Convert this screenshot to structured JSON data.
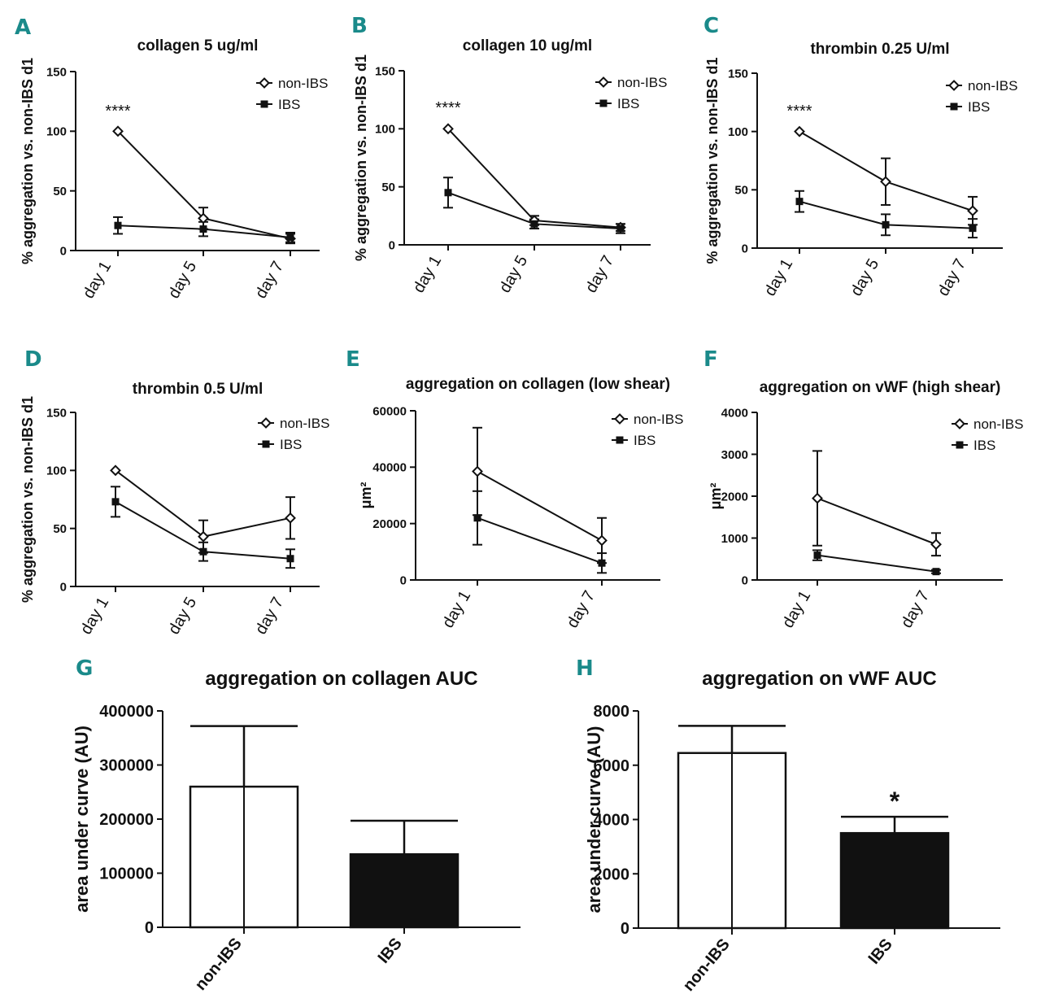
{
  "colors": {
    "panel_letter": "#1a8a8a",
    "ink": "#111111",
    "non_ibs_fill": "#ffffff",
    "ibs_fill": "#111111"
  },
  "chart_data": [
    {
      "id": "A",
      "type": "line",
      "title": "collagen 5 ug/ml",
      "xlabel": "",
      "ylabel": "% aggregation vs. non-IBS d1",
      "categories": [
        "day 1",
        "day 5",
        "day 7"
      ],
      "ylim": [
        0,
        150
      ],
      "yticks": [
        "0",
        "50",
        "100",
        "150"
      ],
      "legend": "top-right",
      "annotation": "****",
      "series": [
        {
          "name": "non-IBS",
          "marker": "diamond-open",
          "values": [
            100,
            27,
            10
          ],
          "errors": [
            0,
            9,
            4
          ]
        },
        {
          "name": "IBS",
          "marker": "square-filled",
          "values": [
            21,
            18,
            11
          ],
          "errors": [
            7,
            6,
            4
          ]
        }
      ]
    },
    {
      "id": "B",
      "type": "line",
      "title": "collagen 10 ug/ml",
      "xlabel": "",
      "ylabel": "% aggregation vs. non-IBS d1",
      "categories": [
        "day 1",
        "day 5",
        "day 7"
      ],
      "ylim": [
        0,
        150
      ],
      "yticks": [
        "0",
        "50",
        "100",
        "150"
      ],
      "legend": "top-right",
      "annotation": "****",
      "series": [
        {
          "name": "non-IBS",
          "marker": "diamond-open",
          "values": [
            100,
            21,
            15
          ],
          "errors": [
            0,
            4,
            3
          ]
        },
        {
          "name": "IBS",
          "marker": "square-filled",
          "values": [
            45,
            18,
            14
          ],
          "errors": [
            13,
            4,
            4
          ]
        }
      ]
    },
    {
      "id": "C",
      "type": "line",
      "title": "thrombin 0.25 U/ml",
      "xlabel": "",
      "ylabel": "% aggregation vs. non-IBS d1",
      "categories": [
        "day 1",
        "day 5",
        "day 7"
      ],
      "ylim": [
        0,
        150
      ],
      "yticks": [
        "0",
        "50",
        "100",
        "150"
      ],
      "legend": "top-right",
      "annotation": "****",
      "series": [
        {
          "name": "non-IBS",
          "marker": "diamond-open",
          "values": [
            100,
            57,
            32
          ],
          "errors": [
            0,
            20,
            12
          ]
        },
        {
          "name": "IBS",
          "marker": "square-filled",
          "values": [
            40,
            20,
            17
          ],
          "errors": [
            9,
            9,
            8
          ]
        }
      ]
    },
    {
      "id": "D",
      "type": "line",
      "title": "thrombin 0.5 U/ml",
      "xlabel": "",
      "ylabel": "% aggregation vs. non-IBS d1",
      "categories": [
        "day 1",
        "day 5",
        "day 7"
      ],
      "ylim": [
        0,
        150
      ],
      "yticks": [
        "0",
        "50",
        "100",
        "150"
      ],
      "legend": "top-right",
      "series": [
        {
          "name": "non-IBS",
          "marker": "diamond-open",
          "values": [
            100,
            43,
            59
          ],
          "errors": [
            0,
            14,
            18
          ]
        },
        {
          "name": "IBS",
          "marker": "square-filled",
          "values": [
            73,
            30,
            24
          ],
          "errors": [
            13,
            8,
            8
          ]
        }
      ]
    },
    {
      "id": "E",
      "type": "line",
      "title": "aggregation on collagen (low shear)",
      "xlabel": "",
      "ylabel": "μm²",
      "categories": [
        "day 1",
        "day 7"
      ],
      "ylim": [
        0,
        60000
      ],
      "yticks": [
        "0",
        "20000",
        "40000",
        "60000"
      ],
      "legend": "top-right",
      "series": [
        {
          "name": "non-IBS",
          "marker": "diamond-open",
          "values": [
            38500,
            14000
          ],
          "errors": [
            15500,
            8000
          ]
        },
        {
          "name": "IBS",
          "marker": "square-filled",
          "values": [
            22000,
            6000
          ],
          "errors": [
            9500,
            3500
          ]
        }
      ]
    },
    {
      "id": "F",
      "type": "line",
      "title": "aggregation on vWF (high shear)",
      "xlabel": "",
      "ylabel": "μm²",
      "categories": [
        "day 1",
        "day 7"
      ],
      "ylim": [
        0,
        4000
      ],
      "yticks": [
        "0",
        "1000",
        "2000",
        "3000",
        "4000"
      ],
      "legend": "top-right",
      "series": [
        {
          "name": "non-IBS",
          "marker": "diamond-open",
          "values": [
            1950,
            850
          ],
          "errors": [
            1130,
            270
          ]
        },
        {
          "name": "IBS",
          "marker": "square-filled",
          "values": [
            590,
            200
          ],
          "errors": [
            120,
            40
          ]
        }
      ]
    },
    {
      "id": "G",
      "type": "bar",
      "title": "aggregation on collagen AUC",
      "xlabel": "",
      "ylabel": "area under curve (AU)",
      "categories": [
        "non-IBS",
        "IBS"
      ],
      "values": [
        260000,
        135000
      ],
      "errors": [
        112000,
        62000
      ],
      "fills": [
        "#ffffff",
        "#111111"
      ],
      "ylim": [
        0,
        400000
      ],
      "yticks": [
        "0",
        "100000",
        "200000",
        "300000",
        "400000"
      ]
    },
    {
      "id": "H",
      "type": "bar",
      "title": "aggregation on vWF AUC",
      "xlabel": "",
      "ylabel": "area under curve (AU)",
      "categories": [
        "non-IBS",
        "IBS"
      ],
      "values": [
        6450,
        3500
      ],
      "errors": [
        1000,
        600
      ],
      "fills": [
        "#ffffff",
        "#111111"
      ],
      "annotations": [
        "",
        "*"
      ],
      "ylim": [
        0,
        8000
      ],
      "yticks": [
        "0",
        "2000",
        "4000",
        "6000",
        "8000"
      ]
    }
  ]
}
